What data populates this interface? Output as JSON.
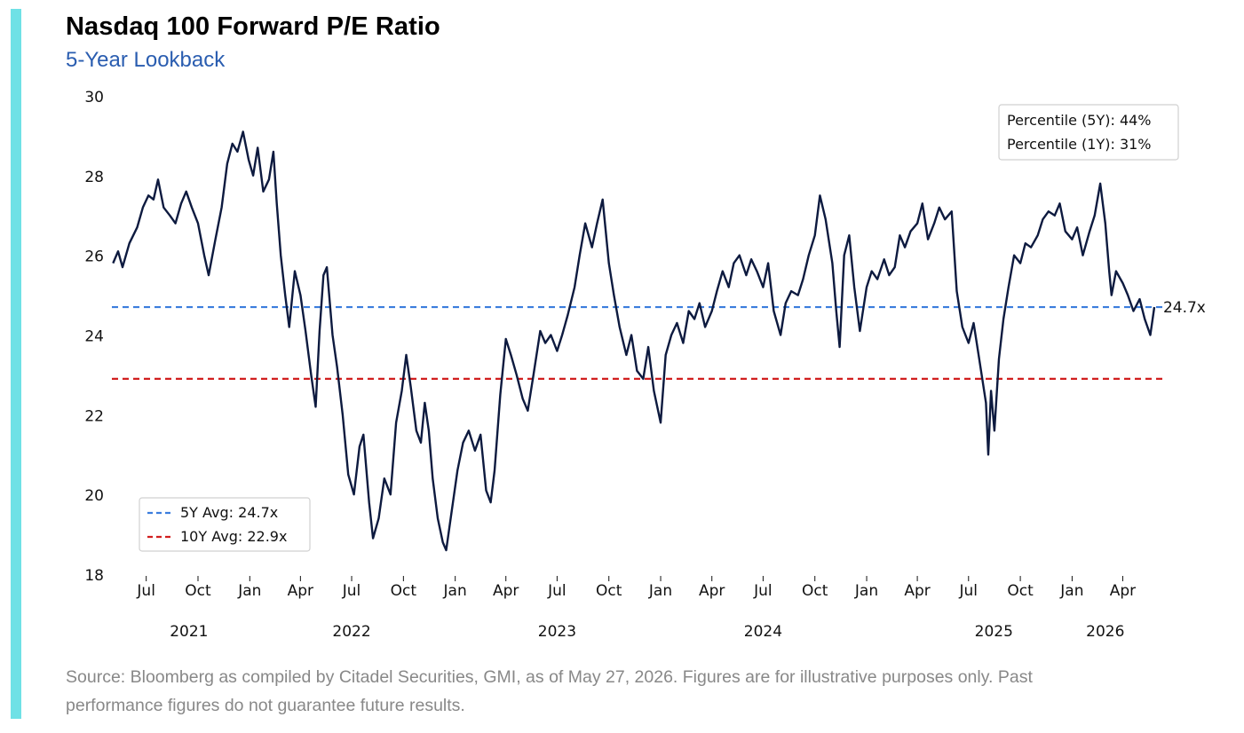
{
  "title": "Nasdaq 100 Forward P/E Ratio",
  "subtitle": "5-Year Lookback",
  "footer": {
    "line1": "Source: Bloomberg as compiled by Citadel Securities, GMI, as of May 27, 2026. Figures are for illustrative purposes only. Past",
    "line2": "performance figures do not guarantee future results."
  },
  "colors": {
    "accent_bar": "#6fe1e6",
    "subtitle": "#2a5db0",
    "series": "#0d1a3f",
    "avg_5y": "#3b7ddd",
    "avg_10y": "#d11f1f"
  },
  "chart_data": {
    "type": "line",
    "title": "Nasdaq 100 Forward P/E Ratio",
    "subtitle": "5-Year Lookback",
    "xlabel": "",
    "ylabel": "",
    "ylim": [
      18,
      30
    ],
    "xlim": [
      "2021-05-01",
      "2026-06-15"
    ],
    "yticks": [
      18,
      20,
      22,
      24,
      26,
      28,
      30
    ],
    "month_ticks": [
      "2021-07-01",
      "2021-10-01",
      "2022-01-01",
      "2022-04-01",
      "2022-07-01",
      "2022-10-01",
      "2023-01-01",
      "2023-04-01",
      "2023-07-01",
      "2023-10-01",
      "2024-01-01",
      "2024-04-01",
      "2024-07-01",
      "2024-10-01",
      "2025-01-01",
      "2025-04-01",
      "2025-07-01",
      "2025-10-01",
      "2026-01-01",
      "2026-04-01"
    ],
    "month_tick_labels": [
      "Jul",
      "Oct",
      "Jan",
      "Apr",
      "Jul",
      "Oct",
      "Jan",
      "Apr",
      "Jul",
      "Oct",
      "Jan",
      "Apr",
      "Jul",
      "Oct",
      "Jan",
      "Apr",
      "Jul",
      "Oct",
      "Jan",
      "Apr"
    ],
    "year_labels": [
      {
        "label": "2021",
        "at": "2021-09-15"
      },
      {
        "label": "2022",
        "at": "2022-07-01"
      },
      {
        "label": "2023",
        "at": "2023-07-01"
      },
      {
        "label": "2024",
        "at": "2024-07-01"
      },
      {
        "label": "2025",
        "at": "2025-08-15"
      },
      {
        "label": "2026",
        "at": "2026-03-01"
      }
    ],
    "grid": false,
    "legend": {
      "placement": "bottom-left",
      "entries": [
        {
          "label": "5Y Avg: 24.7x",
          "color": "#3b7ddd",
          "style": "dashed"
        },
        {
          "label": "10Y Avg: 22.9x",
          "color": "#d11f1f",
          "style": "dashed"
        }
      ]
    },
    "annotation_box": {
      "placement": "top-right",
      "lines": [
        "Percentile (5Y): 44%",
        "Percentile (1Y): 31%"
      ]
    },
    "end_label": "24.7x",
    "hlines": [
      {
        "name": "5Y Avg",
        "value": 24.7,
        "color": "#3b7ddd",
        "style": "dashed"
      },
      {
        "name": "10Y Avg",
        "value": 22.9,
        "color": "#d11f1f",
        "style": "dashed"
      }
    ],
    "series": [
      {
        "color": "#0d1a3f",
        "points": [
          [
            "2021-05-03",
            25.8
          ],
          [
            "2021-05-12",
            26.1
          ],
          [
            "2021-05-20",
            25.7
          ],
          [
            "2021-06-01",
            26.3
          ],
          [
            "2021-06-15",
            26.7
          ],
          [
            "2021-06-25",
            27.2
          ],
          [
            "2021-07-05",
            27.5
          ],
          [
            "2021-07-14",
            27.4
          ],
          [
            "2021-07-22",
            27.9
          ],
          [
            "2021-08-01",
            27.2
          ],
          [
            "2021-08-12",
            27.0
          ],
          [
            "2021-08-22",
            26.8
          ],
          [
            "2021-09-01",
            27.3
          ],
          [
            "2021-09-10",
            27.6
          ],
          [
            "2021-09-20",
            27.2
          ],
          [
            "2021-10-01",
            26.8
          ],
          [
            "2021-10-12",
            26.0
          ],
          [
            "2021-10-20",
            25.5
          ],
          [
            "2021-11-01",
            26.4
          ],
          [
            "2021-11-12",
            27.2
          ],
          [
            "2021-11-22",
            28.3
          ],
          [
            "2021-12-01",
            28.8
          ],
          [
            "2021-12-10",
            28.6
          ],
          [
            "2021-12-20",
            29.1
          ],
          [
            "2021-12-30",
            28.4
          ],
          [
            "2022-01-07",
            28.0
          ],
          [
            "2022-01-15",
            28.7
          ],
          [
            "2022-01-25",
            27.6
          ],
          [
            "2022-02-04",
            27.9
          ],
          [
            "2022-02-12",
            28.6
          ],
          [
            "2022-02-18",
            27.3
          ],
          [
            "2022-02-25",
            26.0
          ],
          [
            "2022-03-05",
            25.0
          ],
          [
            "2022-03-12",
            24.2
          ],
          [
            "2022-03-22",
            25.6
          ],
          [
            "2022-04-01",
            25.0
          ],
          [
            "2022-04-10",
            24.1
          ],
          [
            "2022-04-20",
            23.0
          ],
          [
            "2022-04-28",
            22.2
          ],
          [
            "2022-05-05",
            24.1
          ],
          [
            "2022-05-12",
            25.5
          ],
          [
            "2022-05-18",
            25.7
          ],
          [
            "2022-05-28",
            24.0
          ],
          [
            "2022-06-05",
            23.2
          ],
          [
            "2022-06-15",
            22.0
          ],
          [
            "2022-06-25",
            20.5
          ],
          [
            "2022-07-05",
            20.0
          ],
          [
            "2022-07-15",
            21.2
          ],
          [
            "2022-07-22",
            21.5
          ],
          [
            "2022-08-01",
            19.8
          ],
          [
            "2022-08-08",
            18.9
          ],
          [
            "2022-08-18",
            19.4
          ],
          [
            "2022-08-28",
            20.4
          ],
          [
            "2022-09-08",
            20.0
          ],
          [
            "2022-09-18",
            21.8
          ],
          [
            "2022-09-28",
            22.6
          ],
          [
            "2022-10-06",
            23.5
          ],
          [
            "2022-10-14",
            22.7
          ],
          [
            "2022-10-24",
            21.6
          ],
          [
            "2022-11-01",
            21.3
          ],
          [
            "2022-11-08",
            22.3
          ],
          [
            "2022-11-15",
            21.6
          ],
          [
            "2022-11-22",
            20.4
          ],
          [
            "2022-12-01",
            19.4
          ],
          [
            "2022-12-10",
            18.8
          ],
          [
            "2022-12-16",
            18.6
          ],
          [
            "2022-12-25",
            19.5
          ],
          [
            "2023-01-05",
            20.6
          ],
          [
            "2023-01-15",
            21.3
          ],
          [
            "2023-01-25",
            21.6
          ],
          [
            "2023-02-05",
            21.1
          ],
          [
            "2023-02-15",
            21.5
          ],
          [
            "2023-02-25",
            20.1
          ],
          [
            "2023-03-05",
            19.8
          ],
          [
            "2023-03-12",
            20.6
          ],
          [
            "2023-03-22",
            22.5
          ],
          [
            "2023-04-01",
            23.9
          ],
          [
            "2023-04-10",
            23.5
          ],
          [
            "2023-04-20",
            23.0
          ],
          [
            "2023-05-01",
            22.4
          ],
          [
            "2023-05-10",
            22.1
          ],
          [
            "2023-05-20",
            23.0
          ],
          [
            "2023-06-01",
            24.1
          ],
          [
            "2023-06-10",
            23.8
          ],
          [
            "2023-06-20",
            24.0
          ],
          [
            "2023-07-01",
            23.6
          ],
          [
            "2023-07-10",
            24.0
          ],
          [
            "2023-07-20",
            24.5
          ],
          [
            "2023-08-01",
            25.2
          ],
          [
            "2023-08-10",
            26.0
          ],
          [
            "2023-08-20",
            26.8
          ],
          [
            "2023-09-01",
            26.2
          ],
          [
            "2023-09-10",
            26.8
          ],
          [
            "2023-09-20",
            27.4
          ],
          [
            "2023-10-01",
            25.8
          ],
          [
            "2023-10-10",
            25.0
          ],
          [
            "2023-10-20",
            24.2
          ],
          [
            "2023-11-01",
            23.5
          ],
          [
            "2023-11-10",
            24.0
          ],
          [
            "2023-11-20",
            23.1
          ],
          [
            "2023-12-01",
            22.9
          ],
          [
            "2023-12-10",
            23.7
          ],
          [
            "2023-12-20",
            22.6
          ],
          [
            "2024-01-01",
            21.8
          ],
          [
            "2024-01-10",
            23.5
          ],
          [
            "2024-01-20",
            24.0
          ],
          [
            "2024-01-30",
            24.3
          ],
          [
            "2024-02-10",
            23.8
          ],
          [
            "2024-02-20",
            24.6
          ],
          [
            "2024-03-01",
            24.4
          ],
          [
            "2024-03-10",
            24.8
          ],
          [
            "2024-03-20",
            24.2
          ],
          [
            "2024-04-01",
            24.6
          ],
          [
            "2024-04-10",
            25.1
          ],
          [
            "2024-04-20",
            25.6
          ],
          [
            "2024-05-01",
            25.2
          ],
          [
            "2024-05-10",
            25.8
          ],
          [
            "2024-05-20",
            26.0
          ],
          [
            "2024-06-01",
            25.5
          ],
          [
            "2024-06-10",
            25.9
          ],
          [
            "2024-06-20",
            25.6
          ],
          [
            "2024-07-01",
            25.2
          ],
          [
            "2024-07-10",
            25.8
          ],
          [
            "2024-07-20",
            24.6
          ],
          [
            "2024-08-01",
            24.0
          ],
          [
            "2024-08-10",
            24.8
          ],
          [
            "2024-08-20",
            25.1
          ],
          [
            "2024-09-01",
            25.0
          ],
          [
            "2024-09-10",
            25.4
          ],
          [
            "2024-09-20",
            26.0
          ],
          [
            "2024-10-01",
            26.5
          ],
          [
            "2024-10-10",
            27.5
          ],
          [
            "2024-10-20",
            26.9
          ],
          [
            "2024-11-01",
            25.8
          ],
          [
            "2024-11-08",
            24.6
          ],
          [
            "2024-11-14",
            23.7
          ],
          [
            "2024-11-22",
            26.0
          ],
          [
            "2024-12-01",
            26.5
          ],
          [
            "2024-12-10",
            25.2
          ],
          [
            "2024-12-20",
            24.1
          ],
          [
            "2025-01-01",
            25.2
          ],
          [
            "2025-01-10",
            25.6
          ],
          [
            "2025-01-20",
            25.4
          ],
          [
            "2025-02-01",
            25.9
          ],
          [
            "2025-02-10",
            25.5
          ],
          [
            "2025-02-20",
            25.7
          ],
          [
            "2025-03-01",
            26.5
          ],
          [
            "2025-03-10",
            26.2
          ],
          [
            "2025-03-20",
            26.6
          ],
          [
            "2025-04-01",
            26.8
          ],
          [
            "2025-04-10",
            27.3
          ],
          [
            "2025-04-20",
            26.4
          ],
          [
            "2025-05-01",
            26.8
          ],
          [
            "2025-05-10",
            27.2
          ],
          [
            "2025-05-20",
            26.9
          ],
          [
            "2025-06-01",
            27.1
          ],
          [
            "2025-06-10",
            25.1
          ],
          [
            "2025-06-20",
            24.2
          ],
          [
            "2025-07-01",
            23.8
          ],
          [
            "2025-07-10",
            24.3
          ],
          [
            "2025-07-20",
            23.4
          ],
          [
            "2025-08-01",
            22.3
          ],
          [
            "2025-08-05",
            21.0
          ],
          [
            "2025-08-10",
            22.6
          ],
          [
            "2025-08-16",
            21.6
          ],
          [
            "2025-08-24",
            23.4
          ],
          [
            "2025-09-01",
            24.4
          ],
          [
            "2025-09-10",
            25.2
          ],
          [
            "2025-09-20",
            26.0
          ],
          [
            "2025-10-01",
            25.8
          ],
          [
            "2025-10-10",
            26.3
          ],
          [
            "2025-10-20",
            26.2
          ],
          [
            "2025-11-01",
            26.5
          ],
          [
            "2025-11-10",
            26.9
          ],
          [
            "2025-11-20",
            27.1
          ],
          [
            "2025-12-01",
            27.0
          ],
          [
            "2025-12-10",
            27.3
          ],
          [
            "2025-12-20",
            26.6
          ],
          [
            "2026-01-01",
            26.4
          ],
          [
            "2026-01-10",
            26.7
          ],
          [
            "2026-01-20",
            26.0
          ],
          [
            "2026-02-01",
            26.6
          ],
          [
            "2026-02-10",
            27.0
          ],
          [
            "2026-02-20",
            27.8
          ],
          [
            "2026-03-01",
            26.8
          ],
          [
            "2026-03-08",
            25.6
          ],
          [
            "2026-03-12",
            25.0
          ],
          [
            "2026-03-20",
            25.6
          ],
          [
            "2026-04-01",
            25.3
          ],
          [
            "2026-04-10",
            25.0
          ],
          [
            "2026-04-20",
            24.6
          ],
          [
            "2026-05-01",
            24.9
          ],
          [
            "2026-05-10",
            24.4
          ],
          [
            "2026-05-20",
            24.0
          ],
          [
            "2026-05-27",
            24.7
          ]
        ]
      }
    ]
  }
}
